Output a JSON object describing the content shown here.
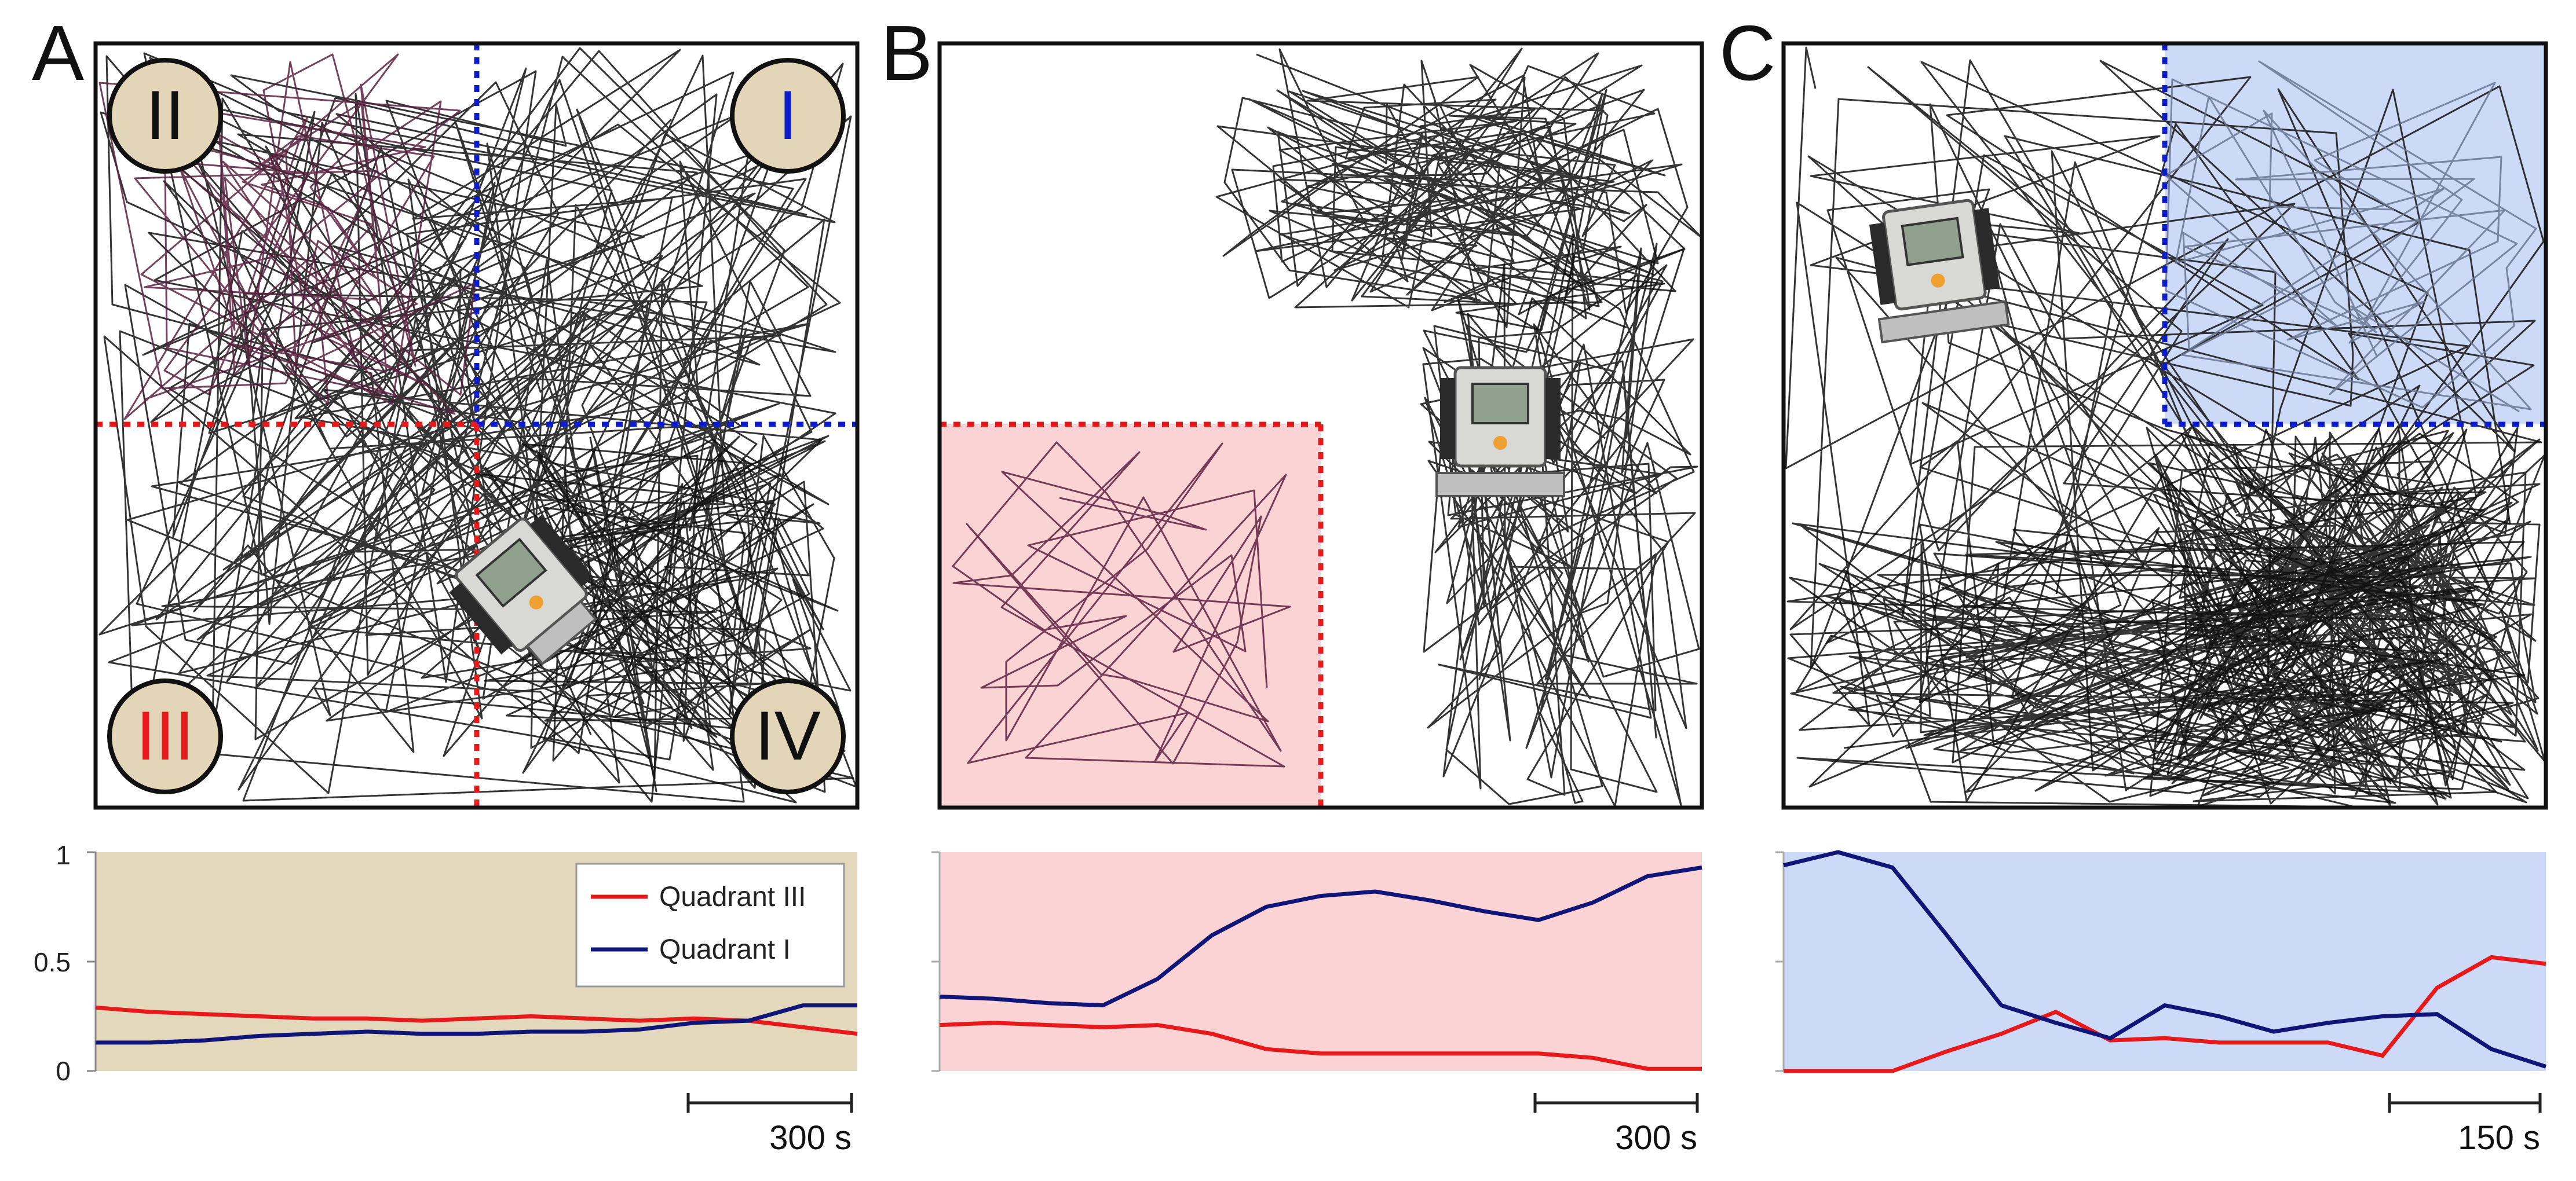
{
  "colors": {
    "quadrant_iii": "#e8191a",
    "quadrant_i": "#0d1ccf",
    "trace_i": "#101678",
    "panel_a_bg": "#e4d8bc",
    "panel_b_bg": "#fcd3d4",
    "panel_c_bg": "#ccdaf8",
    "trajectory": "#111111",
    "trajectory_pink": "#5a2040",
    "badge_fill": "#e3d5b8"
  },
  "panels": [
    {
      "label": "A",
      "scale": "300 s"
    },
    {
      "label": "B",
      "scale": "300 s"
    },
    {
      "label": "C",
      "scale": "150 s"
    }
  ],
  "quadrant_badges": [
    {
      "text": "II",
      "color": "#111111"
    },
    {
      "text": "I",
      "color": "#0d1ccf"
    },
    {
      "text": "III",
      "color": "#e8191a"
    },
    {
      "text": "IV",
      "color": "#111111"
    }
  ],
  "icons": {
    "robot": "robot-icon"
  },
  "chart_data": [
    {
      "type": "line",
      "panel": "A",
      "title": "",
      "xlabel": "",
      "ylabel": "",
      "ylim": [
        0,
        1
      ],
      "yticks": [
        "1",
        "0.5",
        "0"
      ],
      "xlim": [
        0,
        1400
      ],
      "legend": {
        "position": "top-right",
        "entries": [
          "Quadrant III",
          "Quadrant I"
        ]
      },
      "x": [
        0,
        100,
        200,
        300,
        400,
        500,
        600,
        700,
        800,
        900,
        1000,
        1100,
        1200,
        1300,
        1400
      ],
      "series": [
        {
          "name": "Quadrant III",
          "values": [
            0.29,
            0.27,
            0.26,
            0.25,
            0.24,
            0.24,
            0.23,
            0.24,
            0.25,
            0.24,
            0.23,
            0.24,
            0.23,
            0.2,
            0.17
          ]
        },
        {
          "name": "Quadrant I",
          "values": [
            0.13,
            0.13,
            0.14,
            0.16,
            0.17,
            0.18,
            0.17,
            0.17,
            0.18,
            0.18,
            0.19,
            0.22,
            0.23,
            0.3,
            0.3
          ]
        }
      ]
    },
    {
      "type": "line",
      "panel": "B",
      "title": "",
      "xlabel": "",
      "ylabel": "",
      "ylim": [
        0,
        1
      ],
      "xlim": [
        0,
        1400
      ],
      "x": [
        0,
        100,
        200,
        300,
        400,
        500,
        600,
        700,
        800,
        900,
        1000,
        1100,
        1200,
        1300,
        1400
      ],
      "series": [
        {
          "name": "Quadrant III",
          "values": [
            0.21,
            0.22,
            0.21,
            0.2,
            0.21,
            0.17,
            0.1,
            0.08,
            0.08,
            0.08,
            0.08,
            0.08,
            0.06,
            0.01,
            0.01
          ]
        },
        {
          "name": "Quadrant I",
          "values": [
            0.34,
            0.33,
            0.31,
            0.3,
            0.42,
            0.62,
            0.75,
            0.8,
            0.82,
            0.78,
            0.73,
            0.69,
            0.77,
            0.89,
            0.93
          ]
        }
      ]
    },
    {
      "type": "line",
      "panel": "C",
      "title": "",
      "xlabel": "",
      "ylabel": "",
      "ylim": [
        0,
        1
      ],
      "xlim": [
        0,
        700
      ],
      "x": [
        0,
        50,
        100,
        150,
        200,
        250,
        300,
        350,
        400,
        450,
        500,
        550,
        600,
        650,
        700
      ],
      "series": [
        {
          "name": "Quadrant III",
          "values": [
            0.0,
            0.0,
            0.0,
            0.09,
            0.17,
            0.27,
            0.14,
            0.15,
            0.13,
            0.13,
            0.13,
            0.07,
            0.38,
            0.52,
            0.49
          ]
        },
        {
          "name": "Quadrant I",
          "values": [
            0.94,
            1.0,
            0.93,
            0.62,
            0.3,
            0.22,
            0.15,
            0.3,
            0.25,
            0.18,
            0.22,
            0.25,
            0.26,
            0.1,
            0.02
          ]
        }
      ]
    }
  ]
}
